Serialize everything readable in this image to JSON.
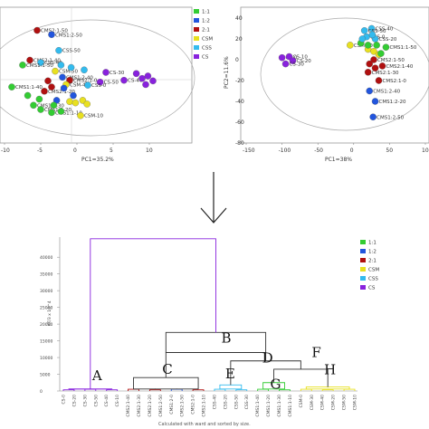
{
  "colors": {
    "1:1": "#33cc33",
    "1:2": "#2255dd",
    "2:1": "#b01010",
    "CSM": "#e8e020",
    "CSS": "#33bbee",
    "CS": "#8822dd"
  },
  "chart_data": [
    {
      "type": "scatter",
      "xlabel": "PC1=35.2%",
      "ylabel": "",
      "xticks": [
        "-10",
        "-5",
        "0",
        "5",
        "10"
      ],
      "xlim": [
        -10,
        15
      ],
      "ylim": [
        -10,
        12
      ],
      "legend": [
        {
          "label": "1:1",
          "group": "1:1"
        },
        {
          "label": "1:2",
          "group": "1:2"
        },
        {
          "label": "2:1",
          "group": "2:1"
        },
        {
          "label": "CSM",
          "group": "CSM"
        },
        {
          "label": "CSS",
          "group": "CSS"
        },
        {
          "label": "CS",
          "group": "CS"
        }
      ],
      "points": [
        {
          "x": -5.5,
          "y": 8.5,
          "g": "2:1",
          "label": "CMS2:1-50"
        },
        {
          "x": -3.5,
          "y": 7.8,
          "g": "1:2",
          "label": "CMS1:2-50"
        },
        {
          "x": -2.5,
          "y": 5.2,
          "g": "CSS",
          "label": "CSS-50"
        },
        {
          "x": -6.5,
          "y": 3.6,
          "g": "2:1",
          "label": "CMS2:1-40"
        },
        {
          "x": -5.0,
          "y": 3.2,
          "g": "CSS",
          "label": "CSS-40"
        },
        {
          "x": -7.5,
          "y": 2.8,
          "g": "1:1",
          "label": "CMS1:1-50"
        },
        {
          "x": -3.0,
          "y": 1.8,
          "g": "CSM",
          "label": "CSM-50"
        },
        {
          "x": -2.0,
          "y": 0.8,
          "g": "1:2",
          "label": "CMS1:2-40"
        },
        {
          "x": -1.0,
          "y": 0.3,
          "g": "2:1",
          "label": "CMS2:1-0"
        },
        {
          "x": -1.5,
          "y": -0.4,
          "g": "CSM",
          "label": "CSM-40"
        },
        {
          "x": 4.0,
          "y": 1.6,
          "g": "CS",
          "label": "CS-30"
        },
        {
          "x": 3.2,
          "y": 0.0,
          "g": "CS",
          "label": "CS-50"
        },
        {
          "x": 6.5,
          "y": 0.3,
          "g": "CS",
          "label": "CS-40"
        },
        {
          "x": 1.5,
          "y": -0.5,
          "g": "CSS",
          "label": "CSS-0"
        },
        {
          "x": -9.0,
          "y": -0.8,
          "g": "1:1",
          "label": "CMS1:1-40"
        },
        {
          "x": -4.5,
          "y": -1.5,
          "g": "2:1",
          "label": "CMS2:1-20"
        },
        {
          "x": -6.0,
          "y": -3.8,
          "g": "1:1",
          "label": "CMS1:1-30"
        },
        {
          "x": -5.0,
          "y": -4.5,
          "g": "1:1",
          "label": "CMS1:1-20"
        },
        {
          "x": -3.5,
          "y": -5.0,
          "g": "1:1",
          "label": "CMS1:1-10"
        },
        {
          "x": 0.5,
          "y": -5.5,
          "g": "CSM",
          "label": "CSM-10"
        },
        {
          "x": -0.5,
          "y": -2.2,
          "g": "1:2",
          "label": ""
        },
        {
          "x": -1.8,
          "y": -1.0,
          "g": "1:2",
          "label": ""
        },
        {
          "x": -2.8,
          "y": -3.0,
          "g": "1:2",
          "label": ""
        },
        {
          "x": -1.0,
          "y": -3.2,
          "g": "CSM",
          "label": ""
        },
        {
          "x": -0.2,
          "y": -3.4,
          "g": "CSM",
          "label": ""
        },
        {
          "x": 0.8,
          "y": -3.0,
          "g": "CSM",
          "label": ""
        },
        {
          "x": 1.4,
          "y": -3.6,
          "g": "CSM",
          "label": ""
        },
        {
          "x": -6.8,
          "y": -2.2,
          "g": "1:1",
          "label": ""
        },
        {
          "x": -5.2,
          "y": -2.8,
          "g": "1:1",
          "label": ""
        },
        {
          "x": -3.2,
          "y": -3.8,
          "g": "1:1",
          "label": ""
        },
        {
          "x": -2.2,
          "y": -4.8,
          "g": "1:1",
          "label": ""
        },
        {
          "x": -4.0,
          "y": 0.2,
          "g": "2:1",
          "label": ""
        },
        {
          "x": -3.5,
          "y": -0.8,
          "g": "2:1",
          "label": ""
        },
        {
          "x": -2.2,
          "y": 2.8,
          "g": "CSS",
          "label": ""
        },
        {
          "x": -0.8,
          "y": 2.4,
          "g": "CSS",
          "label": ""
        },
        {
          "x": 1.0,
          "y": 2.0,
          "g": "CSS",
          "label": ""
        },
        {
          "x": 8.2,
          "y": 1.4,
          "g": "CS",
          "label": ""
        },
        {
          "x": 9.0,
          "y": 0.6,
          "g": "CS",
          "label": ""
        },
        {
          "x": 9.8,
          "y": 1.0,
          "g": "CS",
          "label": ""
        },
        {
          "x": 10.5,
          "y": 0.2,
          "g": "CS",
          "label": ""
        },
        {
          "x": 9.5,
          "y": -0.4,
          "g": "CS",
          "label": ""
        }
      ]
    },
    {
      "type": "scatter",
      "xlabel": "PC1=38%",
      "ylabel": "PC2=11.6%",
      "xticks": [
        "-150",
        "-100",
        "-50",
        "0",
        "50",
        "100"
      ],
      "yticks": [
        "40",
        "20",
        "0",
        "-20",
        "-40",
        "-60",
        "-80"
      ],
      "xlim": [
        -150,
        100
      ],
      "ylim": [
        -80,
        40
      ],
      "points": [
        {
          "x": 25,
          "y": 30,
          "g": "CSS",
          "label": "CSS-40"
        },
        {
          "x": 15,
          "y": 28,
          "g": "CSS",
          "label": "CSS-50"
        },
        {
          "x": 18,
          "y": 22,
          "g": "CSS",
          "label": "CSS-0"
        },
        {
          "x": 30,
          "y": 20,
          "g": "CSS",
          "label": "CSS-20"
        },
        {
          "x": -5,
          "y": 14,
          "g": "CSM",
          "label": "CSM-40"
        },
        {
          "x": 45,
          "y": 12,
          "g": "1:1",
          "label": "CMS1:1-50"
        },
        {
          "x": -100,
          "y": 2,
          "g": "CS",
          "label": "CS-0"
        },
        {
          "x": -90,
          "y": 3,
          "g": "CS",
          "label": "CS-10"
        },
        {
          "x": -85,
          "y": -1,
          "g": "CS",
          "label": "CS-20"
        },
        {
          "x": -95,
          "y": -4,
          "g": "CS",
          "label": "CS-30"
        },
        {
          "x": 28,
          "y": 0,
          "g": "2:1",
          "label": "CMS2:1-50"
        },
        {
          "x": 40,
          "y": -6,
          "g": "2:1",
          "label": "CMS2:1-40"
        },
        {
          "x": 20,
          "y": -12,
          "g": "2:1",
          "label": "CMS2:1-30"
        },
        {
          "x": 35,
          "y": -20,
          "g": "2:1",
          "label": "CMS2:1-0"
        },
        {
          "x": 22,
          "y": -30,
          "g": "1:2",
          "label": "CMS1:2-40"
        },
        {
          "x": 30,
          "y": -40,
          "g": "1:2",
          "label": "CMS1:2-20"
        },
        {
          "x": 27,
          "y": -55,
          "g": "1:2",
          "label": "CMS1:2-50"
        },
        {
          "x": 20,
          "y": 10,
          "g": "CSM",
          "label": ""
        },
        {
          "x": 28,
          "y": 8,
          "g": "CSM",
          "label": ""
        },
        {
          "x": 35,
          "y": 5,
          "g": "CSM",
          "label": ""
        },
        {
          "x": 10,
          "y": 16,
          "g": "1:1",
          "label": ""
        },
        {
          "x": 20,
          "y": 14,
          "g": "1:1",
          "label": ""
        },
        {
          "x": 32,
          "y": 14,
          "g": "1:1",
          "label": ""
        },
        {
          "x": 38,
          "y": 6,
          "g": "1:1",
          "label": ""
        },
        {
          "x": 22,
          "y": -4,
          "g": "2:1",
          "label": ""
        },
        {
          "x": 30,
          "y": -8,
          "g": "2:1",
          "label": ""
        },
        {
          "x": 26,
          "y": 24,
          "g": "CSS",
          "label": ""
        },
        {
          "x": 12,
          "y": 20,
          "g": "CSS",
          "label": ""
        }
      ]
    },
    {
      "type": "dendrogram",
      "ylabel": "KT/3 x 10^4",
      "yticks": [
        "0",
        "5000",
        "10000",
        "15000",
        "20000",
        "25000",
        "30000",
        "35000",
        "40000"
      ],
      "ylim": [
        0,
        46000
      ],
      "caption": "Calculated with ward and sorted by size.",
      "leaves": [
        "CS-0",
        "CS-20",
        "CS-30",
        "CS-50",
        "CS-40",
        "CS-10",
        "CMS2:1-40",
        "CMS2:1-30",
        "CMS2:1-20",
        "CMS1:2-50",
        "CMS1:2-0",
        "CMS2:1-50",
        "CMS2:1-0",
        "CMS2:1-10",
        "CSS-40",
        "CSS-20",
        "CSS-50",
        "CSS-30",
        "CMS1:1-40",
        "CMS1:1-20",
        "CMS1:1-30",
        "CMS1:1-10",
        "CSM-0",
        "CSM-30",
        "CSM-40",
        "CSM-20",
        "CSM-50",
        "CSM-10"
      ],
      "merges": [
        {
          "label": "A",
          "height": 45500
        },
        {
          "label": "B",
          "height": 17500
        },
        {
          "label": "C",
          "height": 4000
        },
        {
          "label": "D",
          "height": 11500
        },
        {
          "label": "E",
          "height": 1800
        },
        {
          "label": "F",
          "height": 9000
        },
        {
          "label": "G",
          "height": 2500
        },
        {
          "label": "H",
          "height": 6500
        }
      ]
    }
  ],
  "arrow": {
    "symbol": "↓"
  }
}
